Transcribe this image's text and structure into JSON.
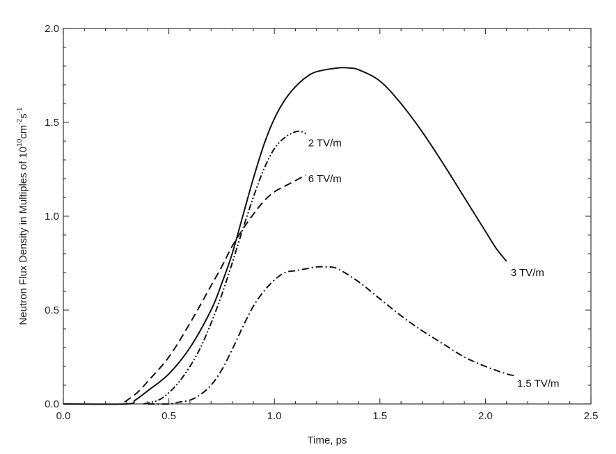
{
  "chart_data": {
    "type": "line",
    "title": "",
    "xlabel": "Time, ps",
    "ylabel": {
      "base": "Neutron Flux Density in Multiples of 10",
      "exp1": "10",
      "mid": "cm",
      "exp2": "-2",
      "mid2": "s",
      "exp3": "-1"
    },
    "xlim": [
      0.0,
      2.5
    ],
    "ylim": [
      0.0,
      2.0
    ],
    "x_ticks": [
      "0.0",
      "0.5",
      "1.0",
      "1.5",
      "2.0",
      "2.5"
    ],
    "x_tick_values": [
      0.0,
      0.5,
      1.0,
      1.5,
      2.0,
      2.5
    ],
    "y_ticks": [
      "0.0",
      "0.5",
      "1.0",
      "1.5",
      "2.0"
    ],
    "y_tick_values": [
      0.0,
      0.5,
      1.0,
      1.5,
      2.0
    ],
    "grid": false,
    "series": [
      {
        "name": "3 TV/m",
        "style": "solid",
        "x": [
          0.0,
          0.3,
          0.34,
          0.4,
          0.5,
          0.6,
          0.7,
          0.75,
          0.8,
          0.85,
          0.9,
          0.95,
          1.0,
          1.05,
          1.1,
          1.15,
          1.2,
          1.3,
          1.35,
          1.4,
          1.5,
          1.6,
          1.7,
          1.8,
          1.9,
          2.0,
          2.05,
          2.1
        ],
        "y": [
          0.0,
          0.0,
          0.02,
          0.07,
          0.16,
          0.3,
          0.5,
          0.64,
          0.8,
          1.0,
          1.2,
          1.38,
          1.52,
          1.62,
          1.69,
          1.74,
          1.77,
          1.79,
          1.79,
          1.78,
          1.72,
          1.6,
          1.45,
          1.28,
          1.1,
          0.92,
          0.83,
          0.76
        ]
      },
      {
        "name": "2 TV/m",
        "style": "dash-dot-dot",
        "x": [
          0.38,
          0.45,
          0.5,
          0.55,
          0.6,
          0.65,
          0.7,
          0.75,
          0.8,
          0.85,
          0.9,
          0.95,
          1.0,
          1.05,
          1.1,
          1.13,
          1.15
        ],
        "y": [
          0.0,
          0.02,
          0.06,
          0.12,
          0.2,
          0.3,
          0.43,
          0.58,
          0.75,
          0.93,
          1.1,
          1.25,
          1.36,
          1.42,
          1.45,
          1.45,
          1.44
        ]
      },
      {
        "name": "6 TV/m",
        "style": "dashed",
        "x": [
          0.29,
          0.35,
          0.4,
          0.5,
          0.6,
          0.7,
          0.75,
          0.8,
          0.85,
          0.9,
          0.95,
          1.0,
          1.05,
          1.1,
          1.15
        ],
        "y": [
          0.01,
          0.06,
          0.12,
          0.25,
          0.43,
          0.63,
          0.73,
          0.84,
          0.93,
          1.01,
          1.08,
          1.13,
          1.16,
          1.19,
          1.22
        ]
      },
      {
        "name": "1.5 TV/m",
        "style": "dash-dot",
        "x": [
          0.4,
          0.5,
          0.55,
          0.6,
          0.65,
          0.7,
          0.75,
          0.8,
          0.85,
          0.9,
          0.95,
          1.0,
          1.05,
          1.1,
          1.15,
          1.2,
          1.25,
          1.3,
          1.4,
          1.5,
          1.6,
          1.7,
          1.8,
          1.9,
          2.0,
          2.1,
          2.14
        ],
        "y": [
          0.0,
          0.0,
          0.01,
          0.02,
          0.05,
          0.1,
          0.18,
          0.29,
          0.41,
          0.52,
          0.6,
          0.66,
          0.7,
          0.71,
          0.72,
          0.73,
          0.73,
          0.72,
          0.65,
          0.56,
          0.47,
          0.39,
          0.32,
          0.25,
          0.2,
          0.16,
          0.15
        ]
      }
    ],
    "annotations": [
      {
        "text": "2 TV/m",
        "x": 1.16,
        "y": 1.39
      },
      {
        "text": "6 TV/m",
        "x": 1.16,
        "y": 1.2
      },
      {
        "text": "3 TV/m",
        "x": 2.12,
        "y": 0.7
      },
      {
        "text": "1.5 TV/m",
        "x": 2.15,
        "y": 0.11
      }
    ]
  }
}
